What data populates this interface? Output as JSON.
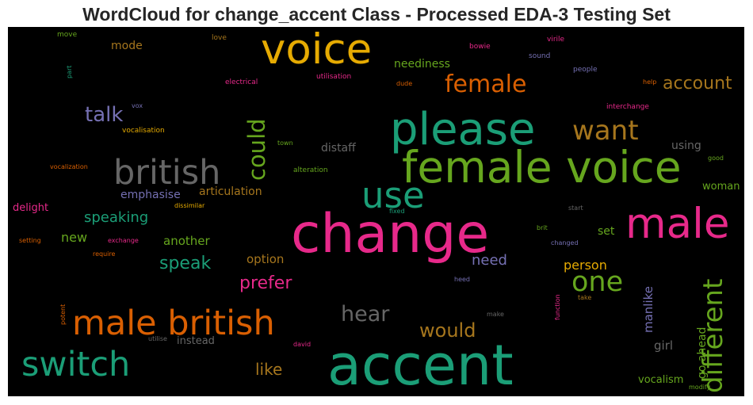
{
  "title": "WordCloud for change_accent Class - Processed EDA-3 Testing Set",
  "words": {
    "change": "change",
    "accent": "accent",
    "please": "please",
    "female_voice": "female voice",
    "voice": "voice",
    "british": "british",
    "male_british": "male british",
    "switch": "switch",
    "male": "male",
    "use": "use",
    "want": "want",
    "female": "female",
    "one": "one",
    "different": "different",
    "could": "could",
    "hear": "hear",
    "would": "would",
    "talk": "talk",
    "speak": "speak",
    "prefer": "prefer",
    "account": "account",
    "like": "like",
    "speaking": "speaking",
    "articulation": "articulation",
    "emphasise": "emphasise",
    "another": "another",
    "new": "new",
    "need": "need",
    "person": "person",
    "option": "option",
    "manlike": "manlike",
    "girl": "girl",
    "go_ahead": "go ahead",
    "vocalism": "vocalism",
    "woman": "woman",
    "set": "set",
    "using": "using",
    "distaff": "distaff",
    "neediness": "neediness",
    "mode": "mode",
    "delight": "delight",
    "instead": "instead",
    "move": "move",
    "love": "love",
    "part": "part",
    "electrical": "electrical",
    "utilisation": "utilisation",
    "dude": "dude",
    "bowie": "bowie",
    "virile": "virile",
    "sound": "sound",
    "people": "people",
    "help": "help",
    "interchange": "interchange",
    "vox": "vox",
    "vocalisation": "vocalisation",
    "town": "town",
    "alteration": "alteration",
    "good": "good",
    "vocalization": "vocalization",
    "dissimilar": "dissimilar",
    "fixed": "fixed",
    "start": "start",
    "setting": "setting",
    "exchange": "exchange",
    "require": "require",
    "brit": "brit",
    "changed": "changed",
    "heed": "heed",
    "take": "take",
    "function": "function",
    "make": "make",
    "potent": "potent",
    "utilise": "utilise",
    "david": "david",
    "modify": "modify"
  },
  "colors": {
    "pink": "#e7298a",
    "teal": "#1b9e77",
    "orange": "#d95f02",
    "gold": "#e6ab02",
    "green": "#66a61e",
    "brown": "#a6761d",
    "gray": "#666666",
    "purple": "#7570b3"
  }
}
